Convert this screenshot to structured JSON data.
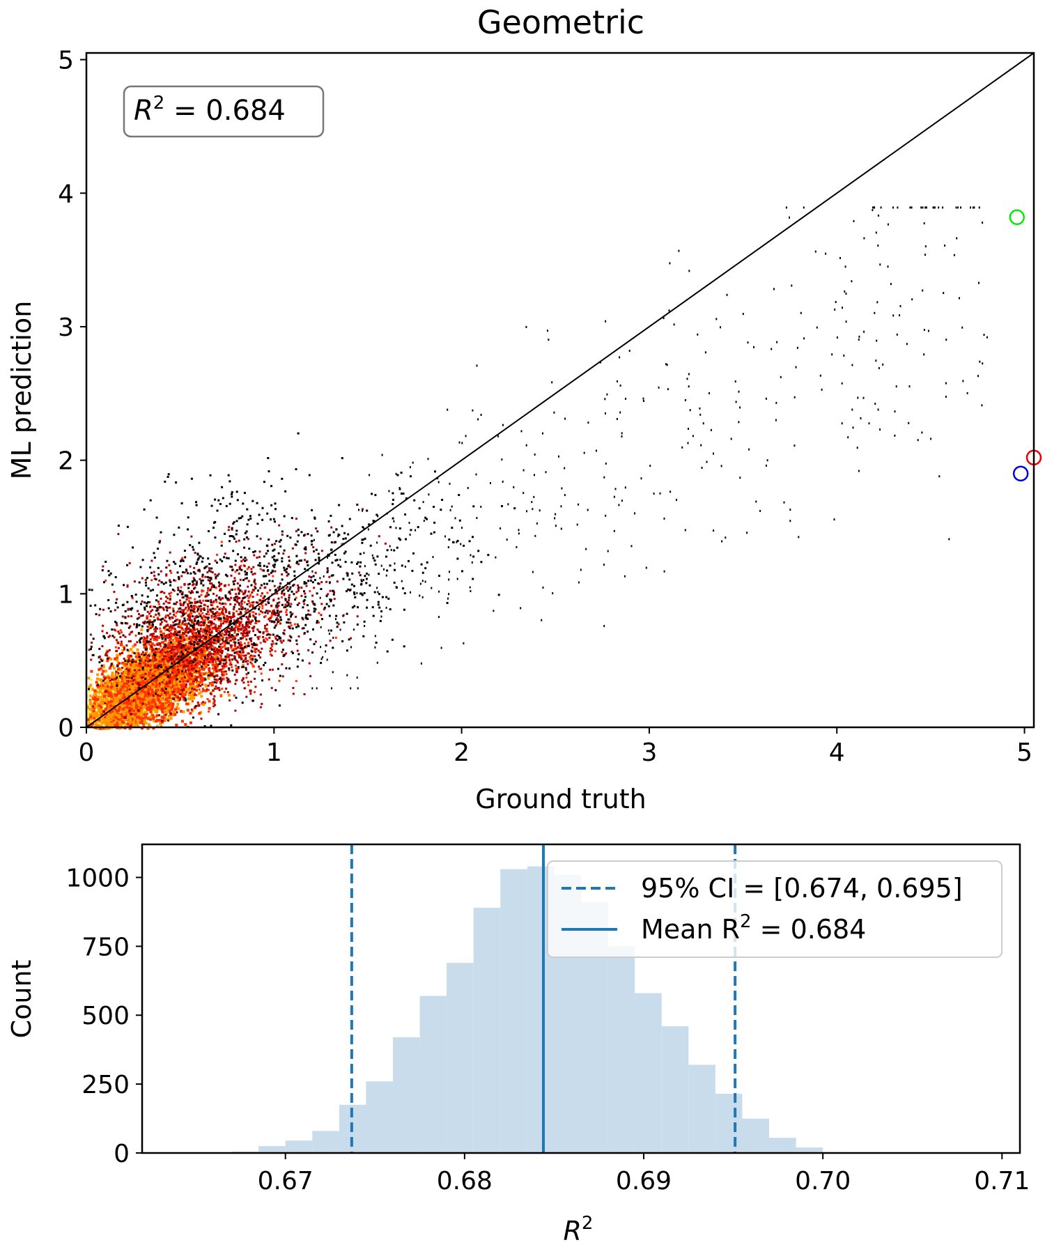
{
  "chart_data": [
    {
      "type": "heatmap",
      "title": "Geometric",
      "xlabel": "Ground truth",
      "ylabel": "ML prediction",
      "xlim": [
        0,
        5.05
      ],
      "ylim": [
        0,
        5.05
      ],
      "xticks": [
        "0",
        "1",
        "2",
        "3",
        "4",
        "5"
      ],
      "yticks": [
        "0",
        "1",
        "2",
        "3",
        "4",
        "5"
      ],
      "colormap": [
        "#000000",
        "#b40000",
        "#ff3300",
        "#ff9900",
        "#ffee66",
        "#ffffcc"
      ],
      "identity_line": true,
      "annotation": {
        "prefix": "R",
        "superscript": "2",
        "suffix": " =  0.684"
      },
      "highlighted_points": [
        {
          "x": 4.96,
          "y": 3.82,
          "color": "#00ee00"
        },
        {
          "x": 5.05,
          "y": 2.02,
          "color": "#ee0000"
        },
        {
          "x": 4.98,
          "y": 1.9,
          "color": "#0000dd"
        }
      ],
      "density_points": [
        [
          0.05,
          0.05,
          9
        ],
        [
          0.1,
          0.1,
          10
        ],
        [
          0.15,
          0.13,
          10
        ],
        [
          0.2,
          0.18,
          10
        ],
        [
          0.25,
          0.22,
          9
        ],
        [
          0.3,
          0.28,
          9
        ],
        [
          0.35,
          0.32,
          8
        ],
        [
          0.4,
          0.38,
          8
        ],
        [
          0.12,
          0.18,
          8
        ],
        [
          0.18,
          0.25,
          8
        ],
        [
          0.25,
          0.33,
          7
        ],
        [
          0.3,
          0.4,
          7
        ],
        [
          0.1,
          0.05,
          7
        ],
        [
          0.2,
          0.12,
          7
        ],
        [
          0.3,
          0.2,
          6
        ],
        [
          0.4,
          0.28,
          6
        ],
        [
          0.45,
          0.45,
          7
        ],
        [
          0.5,
          0.5,
          6
        ],
        [
          0.55,
          0.55,
          6
        ],
        [
          0.6,
          0.6,
          5
        ],
        [
          0.7,
          0.68,
          5
        ],
        [
          0.8,
          0.78,
          4
        ],
        [
          0.9,
          0.9,
          4
        ],
        [
          1.0,
          1.0,
          3
        ],
        [
          0.5,
          0.7,
          4
        ],
        [
          0.6,
          0.85,
          4
        ],
        [
          0.7,
          0.95,
          3
        ],
        [
          0.35,
          0.6,
          4
        ],
        [
          0.45,
          0.75,
          3
        ],
        [
          0.6,
          0.4,
          4
        ],
        [
          0.7,
          0.5,
          3
        ],
        [
          0.8,
          0.6,
          3
        ],
        [
          0.25,
          0.5,
          3
        ],
        [
          0.4,
          0.9,
          2
        ],
        [
          0.55,
          1.1,
          2
        ],
        [
          0.9,
          1.2,
          2
        ],
        [
          1.1,
          1.0,
          2
        ],
        [
          1.2,
          1.3,
          2
        ],
        [
          1.0,
          0.7,
          2
        ],
        [
          1.3,
          0.9,
          1
        ],
        [
          0.3,
          0.8,
          2
        ],
        [
          0.5,
          1.3,
          1
        ],
        [
          0.7,
          1.5,
          1
        ],
        [
          0.9,
          1.6,
          1
        ],
        [
          1.4,
          1.4,
          1
        ],
        [
          1.6,
          1.5,
          1
        ],
        [
          1.8,
          1.4,
          1
        ],
        [
          1.5,
          1.1,
          1
        ]
      ]
    },
    {
      "type": "bar",
      "xlabel_prefix": "R",
      "xlabel_superscript": "2",
      "ylabel": "Count",
      "xlim": [
        0.662,
        0.711
      ],
      "ylim": [
        0,
        1120
      ],
      "xticks": [
        "0.67",
        "0.68",
        "0.69",
        "0.70",
        "0.71"
      ],
      "yticks": [
        "0",
        "250",
        "500",
        "750",
        "1000"
      ],
      "bin_width": 0.0015,
      "bins": [
        {
          "x": 0.6655,
          "count": 2
        },
        {
          "x": 0.667,
          "count": 5
        },
        {
          "x": 0.6685,
          "count": 25
        },
        {
          "x": 0.67,
          "count": 45
        },
        {
          "x": 0.6715,
          "count": 80
        },
        {
          "x": 0.673,
          "count": 175
        },
        {
          "x": 0.6745,
          "count": 260
        },
        {
          "x": 0.676,
          "count": 420
        },
        {
          "x": 0.6775,
          "count": 570
        },
        {
          "x": 0.679,
          "count": 690
        },
        {
          "x": 0.6805,
          "count": 890
        },
        {
          "x": 0.682,
          "count": 1030
        },
        {
          "x": 0.6835,
          "count": 1040
        },
        {
          "x": 0.685,
          "count": 1010
        },
        {
          "x": 0.6865,
          "count": 910
        },
        {
          "x": 0.688,
          "count": 750
        },
        {
          "x": 0.6895,
          "count": 580
        },
        {
          "x": 0.691,
          "count": 460
        },
        {
          "x": 0.6925,
          "count": 320
        },
        {
          "x": 0.694,
          "count": 215
        },
        {
          "x": 0.6955,
          "count": 125
        },
        {
          "x": 0.697,
          "count": 55
        },
        {
          "x": 0.6985,
          "count": 20
        },
        {
          "x": 0.7,
          "count": 3
        }
      ],
      "bar_color": "#c9dcec",
      "ci": [
        0.6737,
        0.6951
      ],
      "mean": 0.6844,
      "line_color": "#1f77b4",
      "legend": [
        {
          "style": "dashed",
          "label": "95% CI =  [0.674, 0.695]"
        },
        {
          "style": "solid",
          "prefix": "Mean R",
          "superscript": "2",
          "suffix": " =  0.684"
        }
      ]
    }
  ]
}
